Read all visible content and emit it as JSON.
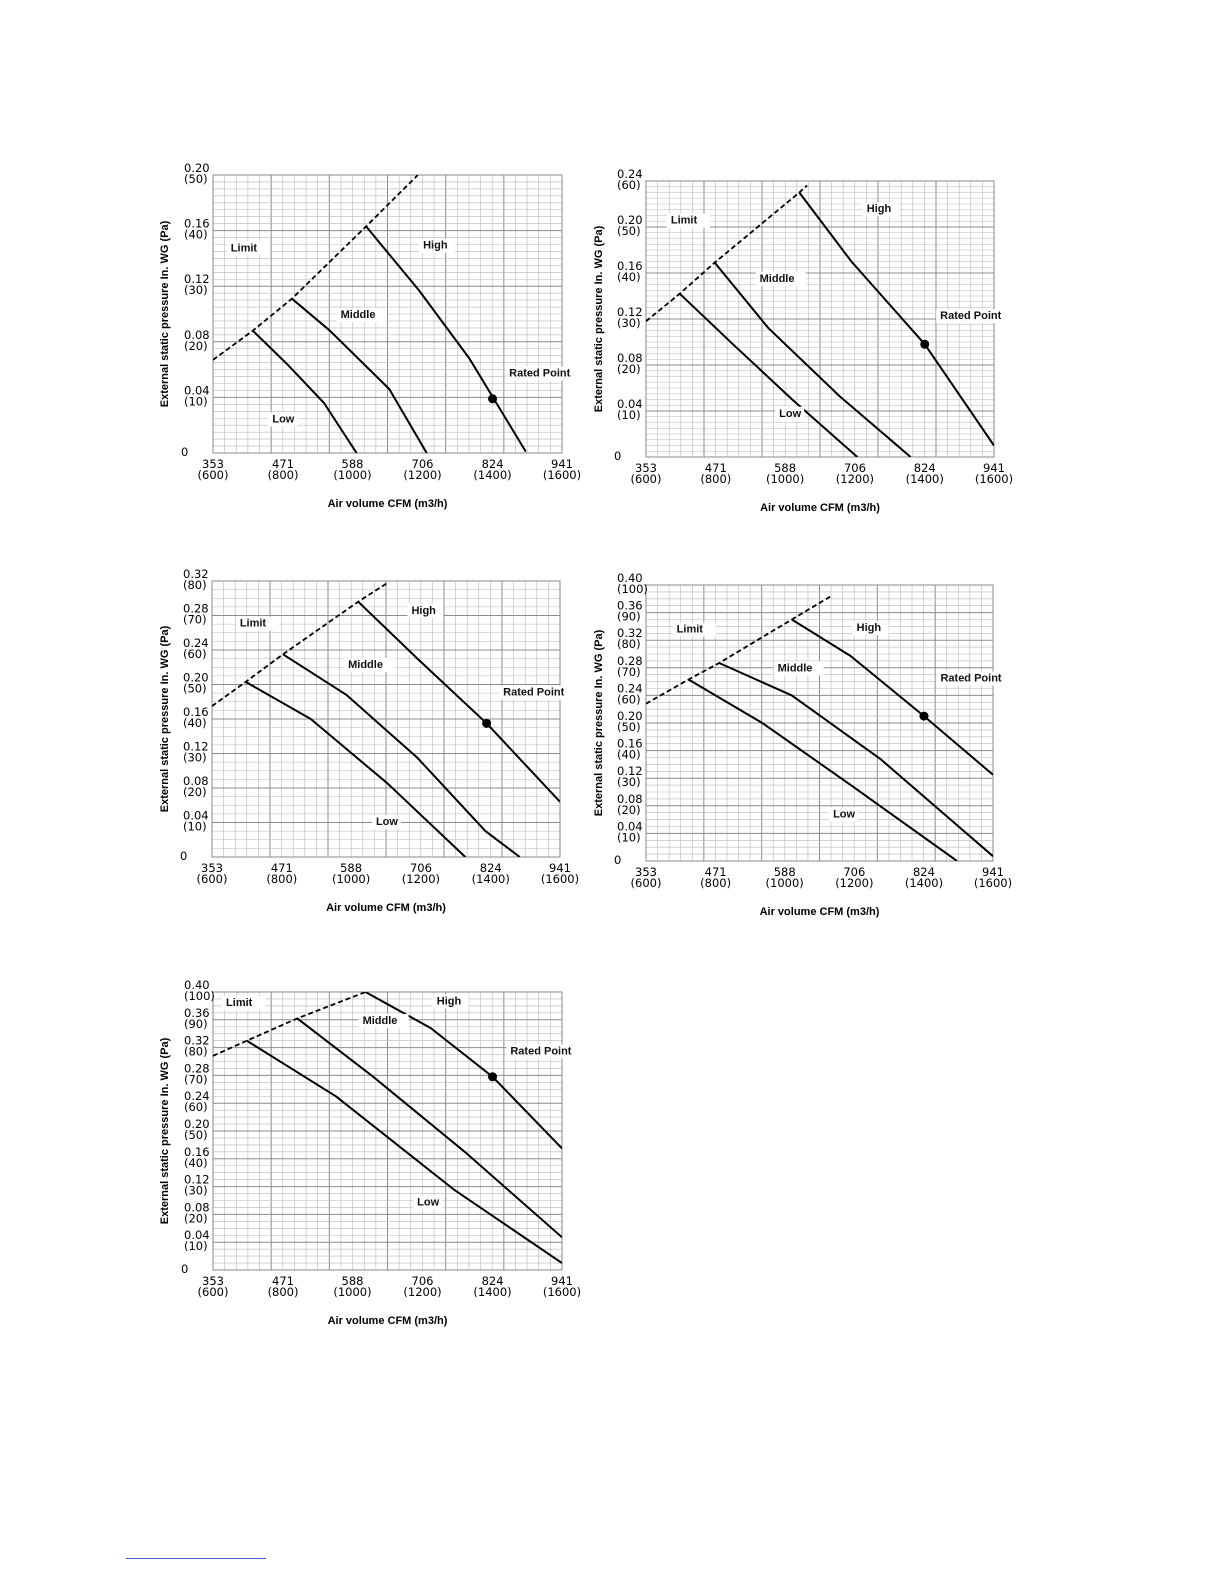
{
  "colors": {
    "grid": "#b8b8b8",
    "frame": "#888888",
    "curve": "#000000",
    "background": "#ffffff"
  },
  "chart_data": [
    {
      "type": "line",
      "xlabel": "Air volume CFM (m3/h)",
      "ylabel": "External static pressure In. WG (Pa)",
      "xlim": [
        353,
        941
      ],
      "ylim": [
        0,
        0.2
      ],
      "x_ticks": [
        {
          "value": 353,
          "label": "353",
          "sub": "(600)"
        },
        {
          "value": 471,
          "label": "471",
          "sub": "(800)"
        },
        {
          "value": 588,
          "label": "588",
          "sub": "(1000)"
        },
        {
          "value": 706,
          "label": "706",
          "sub": "(1200)"
        },
        {
          "value": 824,
          "label": "824",
          "sub": "(1400)"
        },
        {
          "value": 941,
          "label": "941",
          "sub": "(1600)"
        }
      ],
      "y_ticks": [
        {
          "value": 0,
          "label": "0",
          "sub": ""
        },
        {
          "value": 0.04,
          "label": "0.04",
          "sub": "(10)"
        },
        {
          "value": 0.08,
          "label": "0.08",
          "sub": "(20)"
        },
        {
          "value": 0.12,
          "label": "0.12",
          "sub": "(30)"
        },
        {
          "value": 0.16,
          "label": "0.16",
          "sub": "(40)"
        },
        {
          "value": 0.2,
          "label": "0.20",
          "sub": "(50)"
        }
      ],
      "series": [
        {
          "name": "Limit",
          "style": "dashed",
          "points": [
            [
              353,
              0.067
            ],
            [
              420,
              0.088
            ],
            [
              486,
              0.111
            ],
            [
              611,
              0.163
            ],
            [
              698,
              0.2
            ]
          ],
          "label_at": [
            383,
            0.145
          ]
        },
        {
          "name": "High",
          "style": "solid",
          "points": [
            [
              611,
              0.163
            ],
            [
              700,
              0.117
            ],
            [
              785,
              0.068
            ],
            [
              880,
              0.001
            ]
          ],
          "label_at": [
            707,
            0.147
          ]
        },
        {
          "name": "Middle",
          "style": "solid",
          "points": [
            [
              486,
              0.111
            ],
            [
              550,
              0.088
            ],
            [
              650,
              0.046
            ],
            [
              713,
              0.0
            ]
          ],
          "label_at": [
            568,
            0.097
          ]
        },
        {
          "name": "Low",
          "style": "solid",
          "points": [
            [
              420,
              0.088
            ],
            [
              480,
              0.063
            ],
            [
              540,
              0.036
            ],
            [
              595,
              0.0
            ]
          ],
          "label_at": [
            453,
            0.022
          ]
        }
      ],
      "rated_point": {
        "name": "Rated Point",
        "x": 824,
        "y": 0.039,
        "label_at": [
          852,
          0.055
        ]
      }
    },
    {
      "type": "line",
      "xlabel": "Air volume CFM (m3/h)",
      "ylabel": "External static pressure In. WG (Pa)",
      "xlim": [
        353,
        941
      ],
      "ylim": [
        0,
        0.24
      ],
      "x_ticks": [
        {
          "value": 353,
          "label": "353",
          "sub": "(600)"
        },
        {
          "value": 471,
          "label": "471",
          "sub": "(800)"
        },
        {
          "value": 588,
          "label": "588",
          "sub": "(1000)"
        },
        {
          "value": 706,
          "label": "706",
          "sub": "(1200)"
        },
        {
          "value": 824,
          "label": "824",
          "sub": "(1400)"
        },
        {
          "value": 941,
          "label": "941",
          "sub": "(1600)"
        }
      ],
      "y_ticks": [
        {
          "value": 0,
          "label": "0",
          "sub": ""
        },
        {
          "value": 0.04,
          "label": "0.04",
          "sub": "(10)"
        },
        {
          "value": 0.08,
          "label": "0.08",
          "sub": "(20)"
        },
        {
          "value": 0.12,
          "label": "0.12",
          "sub": "(30)"
        },
        {
          "value": 0.16,
          "label": "0.16",
          "sub": "(40)"
        },
        {
          "value": 0.2,
          "label": "0.20",
          "sub": "(50)"
        },
        {
          "value": 0.24,
          "label": "0.24",
          "sub": "(60)"
        }
      ],
      "series": [
        {
          "name": "Limit",
          "style": "dashed",
          "points": [
            [
              353,
              0.118
            ],
            [
              410,
              0.142
            ],
            [
              469,
              0.169
            ],
            [
              612,
              0.23
            ],
            [
              625,
              0.236
            ]
          ],
          "label_at": [
            395,
            0.203
          ]
        },
        {
          "name": "High",
          "style": "solid",
          "points": [
            [
              612,
              0.23
            ],
            [
              700,
              0.17
            ],
            [
              824,
              0.098
            ],
            [
              941,
              0.01
            ]
          ],
          "label_at": [
            726,
            0.213
          ]
        },
        {
          "name": "Middle",
          "style": "solid",
          "points": [
            [
              469,
              0.169
            ],
            [
              560,
              0.112
            ],
            [
              680,
              0.053
            ],
            [
              800,
              0.0
            ]
          ],
          "label_at": [
            545,
            0.152
          ]
        },
        {
          "name": "Low",
          "style": "solid",
          "points": [
            [
              410,
              0.142
            ],
            [
              500,
              0.098
            ],
            [
              600,
              0.05
            ],
            [
              710,
              0.0
            ]
          ],
          "label_at": [
            578,
            0.035
          ]
        }
      ],
      "rated_point": {
        "name": "Rated Point",
        "x": 824,
        "y": 0.098,
        "label_at": [
          850,
          0.12
        ]
      }
    },
    {
      "type": "line",
      "xlabel": "Air volume CFM (m3/h)",
      "ylabel": "External static pressure In. WG (Pa)",
      "xlim": [
        353,
        941
      ],
      "ylim": [
        0,
        0.32
      ],
      "x_ticks": [
        {
          "value": 353,
          "label": "353",
          "sub": "(600)"
        },
        {
          "value": 471,
          "label": "471",
          "sub": "(800)"
        },
        {
          "value": 588,
          "label": "588",
          "sub": "(1000)"
        },
        {
          "value": 706,
          "label": "706",
          "sub": "(1200)"
        },
        {
          "value": 824,
          "label": "824",
          "sub": "(1400)"
        },
        {
          "value": 941,
          "label": "941",
          "sub": "(1600)"
        }
      ],
      "y_ticks": [
        {
          "value": 0,
          "label": "0",
          "sub": ""
        },
        {
          "value": 0.04,
          "label": "0.04",
          "sub": "(10)"
        },
        {
          "value": 0.08,
          "label": "0.08",
          "sub": "(20)"
        },
        {
          "value": 0.12,
          "label": "0.12",
          "sub": "(30)"
        },
        {
          "value": 0.16,
          "label": "0.16",
          "sub": "(40)"
        },
        {
          "value": 0.2,
          "label": "0.20",
          "sub": "(50)"
        },
        {
          "value": 0.24,
          "label": "0.24",
          "sub": "(60)"
        },
        {
          "value": 0.28,
          "label": "0.28",
          "sub": "(70)"
        },
        {
          "value": 0.32,
          "label": "0.32",
          "sub": "(80)"
        }
      ],
      "series": [
        {
          "name": "Limit",
          "style": "dashed",
          "points": [
            [
              353,
              0.175
            ],
            [
              410,
              0.203
            ],
            [
              473,
              0.235
            ],
            [
              600,
              0.296
            ],
            [
              650,
              0.318
            ]
          ],
          "label_at": [
            400,
            0.267
          ]
        },
        {
          "name": "High",
          "style": "solid",
          "points": [
            [
              600,
              0.296
            ],
            [
              700,
              0.23
            ],
            [
              817,
              0.155
            ],
            [
              941,
              0.064
            ]
          ],
          "label_at": [
            690,
            0.282
          ]
        },
        {
          "name": "Middle",
          "style": "solid",
          "points": [
            [
              473,
              0.235
            ],
            [
              580,
              0.188
            ],
            [
              700,
              0.115
            ],
            [
              815,
              0.03
            ],
            [
              873,
              0.0
            ]
          ],
          "label_at": [
            583,
            0.219
          ]
        },
        {
          "name": "Low",
          "style": "solid",
          "points": [
            [
              410,
              0.203
            ],
            [
              520,
              0.16
            ],
            [
              650,
              0.085
            ],
            [
              781,
              0.0
            ]
          ],
          "label_at": [
            630,
            0.037
          ]
        }
      ],
      "rated_point": {
        "name": "Rated Point",
        "x": 817,
        "y": 0.155,
        "label_at": [
          845,
          0.187
        ]
      }
    },
    {
      "type": "line",
      "xlabel": "Air volume CFM (m3/h)",
      "ylabel": "External static pressure In. WG (Pa)",
      "xlim": [
        353,
        941
      ],
      "ylim": [
        0,
        0.4
      ],
      "x_ticks": [
        {
          "value": 353,
          "label": "353",
          "sub": "(600)"
        },
        {
          "value": 471,
          "label": "471",
          "sub": "(800)"
        },
        {
          "value": 588,
          "label": "588",
          "sub": "(1000)"
        },
        {
          "value": 706,
          "label": "706",
          "sub": "(1200)"
        },
        {
          "value": 824,
          "label": "824",
          "sub": "(1400)"
        },
        {
          "value": 941,
          "label": "941",
          "sub": "(1600)"
        }
      ],
      "y_ticks": [
        {
          "value": 0,
          "label": "0",
          "sub": ""
        },
        {
          "value": 0.04,
          "label": "0.04",
          "sub": "(10)"
        },
        {
          "value": 0.08,
          "label": "0.08",
          "sub": "(20)"
        },
        {
          "value": 0.12,
          "label": "0.12",
          "sub": "(30)"
        },
        {
          "value": 0.16,
          "label": "0.16",
          "sub": "(40)"
        },
        {
          "value": 0.2,
          "label": "0.20",
          "sub": "(50)"
        },
        {
          "value": 0.24,
          "label": "0.24",
          "sub": "(60)"
        },
        {
          "value": 0.28,
          "label": "0.28",
          "sub": "(70)"
        },
        {
          "value": 0.32,
          "label": "0.32",
          "sub": "(80)"
        },
        {
          "value": 0.36,
          "label": "0.36",
          "sub": "(90)"
        },
        {
          "value": 0.4,
          "label": "0.40",
          "sub": "(100)"
        }
      ],
      "series": [
        {
          "name": "Limit",
          "style": "dashed",
          "points": [
            [
              353,
              0.228
            ],
            [
              425,
              0.263
            ],
            [
              477,
              0.287
            ],
            [
              600,
              0.35
            ],
            [
              665,
              0.383
            ]
          ],
          "label_at": [
            405,
            0.331
          ]
        },
        {
          "name": "High",
          "style": "solid",
          "points": [
            [
              600,
              0.35
            ],
            [
              700,
              0.297
            ],
            [
              824,
              0.21
            ],
            [
              941,
              0.125
            ]
          ],
          "label_at": [
            710,
            0.333
          ]
        },
        {
          "name": "Middle",
          "style": "solid",
          "points": [
            [
              477,
              0.287
            ],
            [
              600,
              0.24
            ],
            [
              750,
              0.148
            ],
            [
              941,
              0.007
            ]
          ],
          "label_at": [
            576,
            0.275
          ]
        },
        {
          "name": "Low",
          "style": "solid",
          "points": [
            [
              425,
              0.263
            ],
            [
              550,
              0.2
            ],
            [
              700,
              0.11
            ],
            [
              880,
              0.0
            ]
          ],
          "label_at": [
            670,
            0.063
          ]
        }
      ],
      "rated_point": {
        "name": "Rated Point",
        "x": 824,
        "y": 0.21,
        "label_at": [
          852,
          0.26
        ]
      }
    },
    {
      "type": "line",
      "xlabel": "Air volume CFM (m3/h)",
      "ylabel": "External static pressure In. WG (Pa)",
      "xlim": [
        353,
        941
      ],
      "ylim": [
        0,
        0.4
      ],
      "x_ticks": [
        {
          "value": 353,
          "label": "353",
          "sub": "(600)"
        },
        {
          "value": 471,
          "label": "471",
          "sub": "(800)"
        },
        {
          "value": 588,
          "label": "588",
          "sub": "(1000)"
        },
        {
          "value": 706,
          "label": "706",
          "sub": "(1200)"
        },
        {
          "value": 824,
          "label": "824",
          "sub": "(1400)"
        },
        {
          "value": 941,
          "label": "941",
          "sub": "(1600)"
        }
      ],
      "y_ticks": [
        {
          "value": 0,
          "label": "0",
          "sub": ""
        },
        {
          "value": 0.04,
          "label": "0.04",
          "sub": "(10)"
        },
        {
          "value": 0.08,
          "label": "0.08",
          "sub": "(20)"
        },
        {
          "value": 0.12,
          "label": "0.12",
          "sub": "(30)"
        },
        {
          "value": 0.16,
          "label": "0.16",
          "sub": "(40)"
        },
        {
          "value": 0.2,
          "label": "0.20",
          "sub": "(50)"
        },
        {
          "value": 0.24,
          "label": "0.24",
          "sub": "(60)"
        },
        {
          "value": 0.28,
          "label": "0.28",
          "sub": "(70)"
        },
        {
          "value": 0.32,
          "label": "0.32",
          "sub": "(80)"
        },
        {
          "value": 0.36,
          "label": "0.36",
          "sub": "(90)"
        },
        {
          "value": 0.4,
          "label": "0.40",
          "sub": "(100)"
        }
      ],
      "series": [
        {
          "name": "Limit",
          "style": "dashed",
          "points": [
            [
              353,
              0.308
            ],
            [
              410,
              0.33
            ],
            [
              495,
              0.362
            ],
            [
              610,
              0.4
            ]
          ],
          "label_at": [
            375,
            0.38
          ]
        },
        {
          "name": "High",
          "style": "solid",
          "points": [
            [
              610,
              0.4
            ],
            [
              720,
              0.348
            ],
            [
              824,
              0.278
            ],
            [
              941,
              0.175
            ]
          ],
          "label_at": [
            730,
            0.382
          ]
        },
        {
          "name": "Middle",
          "style": "solid",
          "points": [
            [
              495,
              0.362
            ],
            [
              620,
              0.28
            ],
            [
              780,
              0.168
            ],
            [
              941,
              0.047
            ]
          ],
          "label_at": [
            605,
            0.354
          ]
        },
        {
          "name": "Low",
          "style": "solid",
          "points": [
            [
              410,
              0.33
            ],
            [
              560,
              0.25
            ],
            [
              760,
              0.115
            ],
            [
              941,
              0.01
            ]
          ],
          "label_at": [
            697,
            0.093
          ]
        }
      ],
      "rated_point": {
        "name": "Rated Point",
        "x": 824,
        "y": 0.278,
        "label_at": [
          854,
          0.31
        ]
      }
    }
  ]
}
